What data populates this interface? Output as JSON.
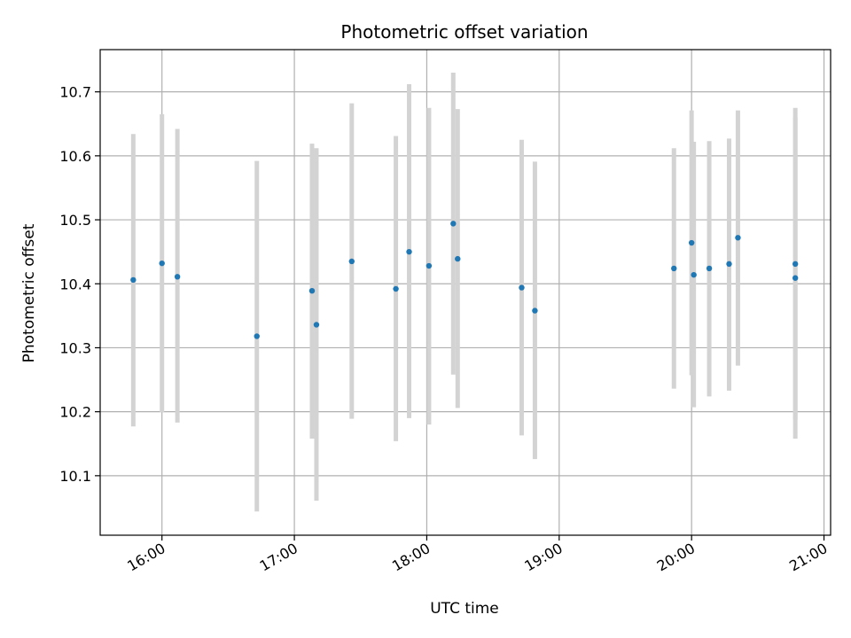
{
  "chart_data": {
    "type": "scatter",
    "title": "Photometric offset variation",
    "xlabel": "UTC time",
    "ylabel": "Photometric offset",
    "xlim": [
      "15:32",
      "21:03"
    ],
    "ylim": [
      10.007,
      10.766
    ],
    "x_ticks": [
      "16:00",
      "17:00",
      "18:00",
      "19:00",
      "20:00",
      "21:00"
    ],
    "y_ticks": [
      10.1,
      10.2,
      10.3,
      10.4,
      10.5,
      10.6,
      10.7
    ],
    "y_tick_labels": [
      "10.1",
      "10.2",
      "10.3",
      "10.4",
      "10.5",
      "10.6",
      "10.7"
    ],
    "grid": true,
    "colors": {
      "points": "#1f77b4",
      "errorbars": "#d3d3d3",
      "grid": "#b0b0b0"
    },
    "points": [
      {
        "time": "15:47",
        "y": 10.406,
        "yerr_low": 10.177,
        "yerr_high": 10.634
      },
      {
        "time": "16:00",
        "y": 10.432,
        "yerr_low": 10.199,
        "yerr_high": 10.665
      },
      {
        "time": "16:07",
        "y": 10.411,
        "yerr_low": 10.183,
        "yerr_high": 10.642
      },
      {
        "time": "16:43",
        "y": 10.318,
        "yerr_low": 10.044,
        "yerr_high": 10.592
      },
      {
        "time": "17:08",
        "y": 10.389,
        "yerr_low": 10.158,
        "yerr_high": 10.619
      },
      {
        "time": "17:10",
        "y": 10.336,
        "yerr_low": 10.061,
        "yerr_high": 10.612
      },
      {
        "time": "17:26",
        "y": 10.435,
        "yerr_low": 10.189,
        "yerr_high": 10.682
      },
      {
        "time": "17:46",
        "y": 10.392,
        "yerr_low": 10.154,
        "yerr_high": 10.631
      },
      {
        "time": "17:52",
        "y": 10.45,
        "yerr_low": 10.19,
        "yerr_high": 10.712
      },
      {
        "time": "18:01",
        "y": 10.428,
        "yerr_low": 10.18,
        "yerr_high": 10.675
      },
      {
        "time": "18:12",
        "y": 10.494,
        "yerr_low": 10.258,
        "yerr_high": 10.73
      },
      {
        "time": "18:14",
        "y": 10.439,
        "yerr_low": 10.206,
        "yerr_high": 10.673
      },
      {
        "time": "18:43",
        "y": 10.394,
        "yerr_low": 10.163,
        "yerr_high": 10.625
      },
      {
        "time": "18:49",
        "y": 10.358,
        "yerr_low": 10.126,
        "yerr_high": 10.591
      },
      {
        "time": "19:52",
        "y": 10.424,
        "yerr_low": 10.236,
        "yerr_high": 10.612
      },
      {
        "time": "20:00",
        "y": 10.464,
        "yerr_low": 10.257,
        "yerr_high": 10.671
      },
      {
        "time": "20:01",
        "y": 10.414,
        "yerr_low": 10.207,
        "yerr_high": 10.622
      },
      {
        "time": "20:08",
        "y": 10.424,
        "yerr_low": 10.224,
        "yerr_high": 10.623
      },
      {
        "time": "20:17",
        "y": 10.431,
        "yerr_low": 10.233,
        "yerr_high": 10.627
      },
      {
        "time": "20:21",
        "y": 10.472,
        "yerr_low": 10.272,
        "yerr_high": 10.671
      },
      {
        "time": "20:47",
        "y": 10.431,
        "yerr_low": 10.188,
        "yerr_high": 10.675
      },
      {
        "time": "20:47",
        "y": 10.409,
        "yerr_low": 10.158,
        "yerr_high": 10.66
      }
    ]
  }
}
